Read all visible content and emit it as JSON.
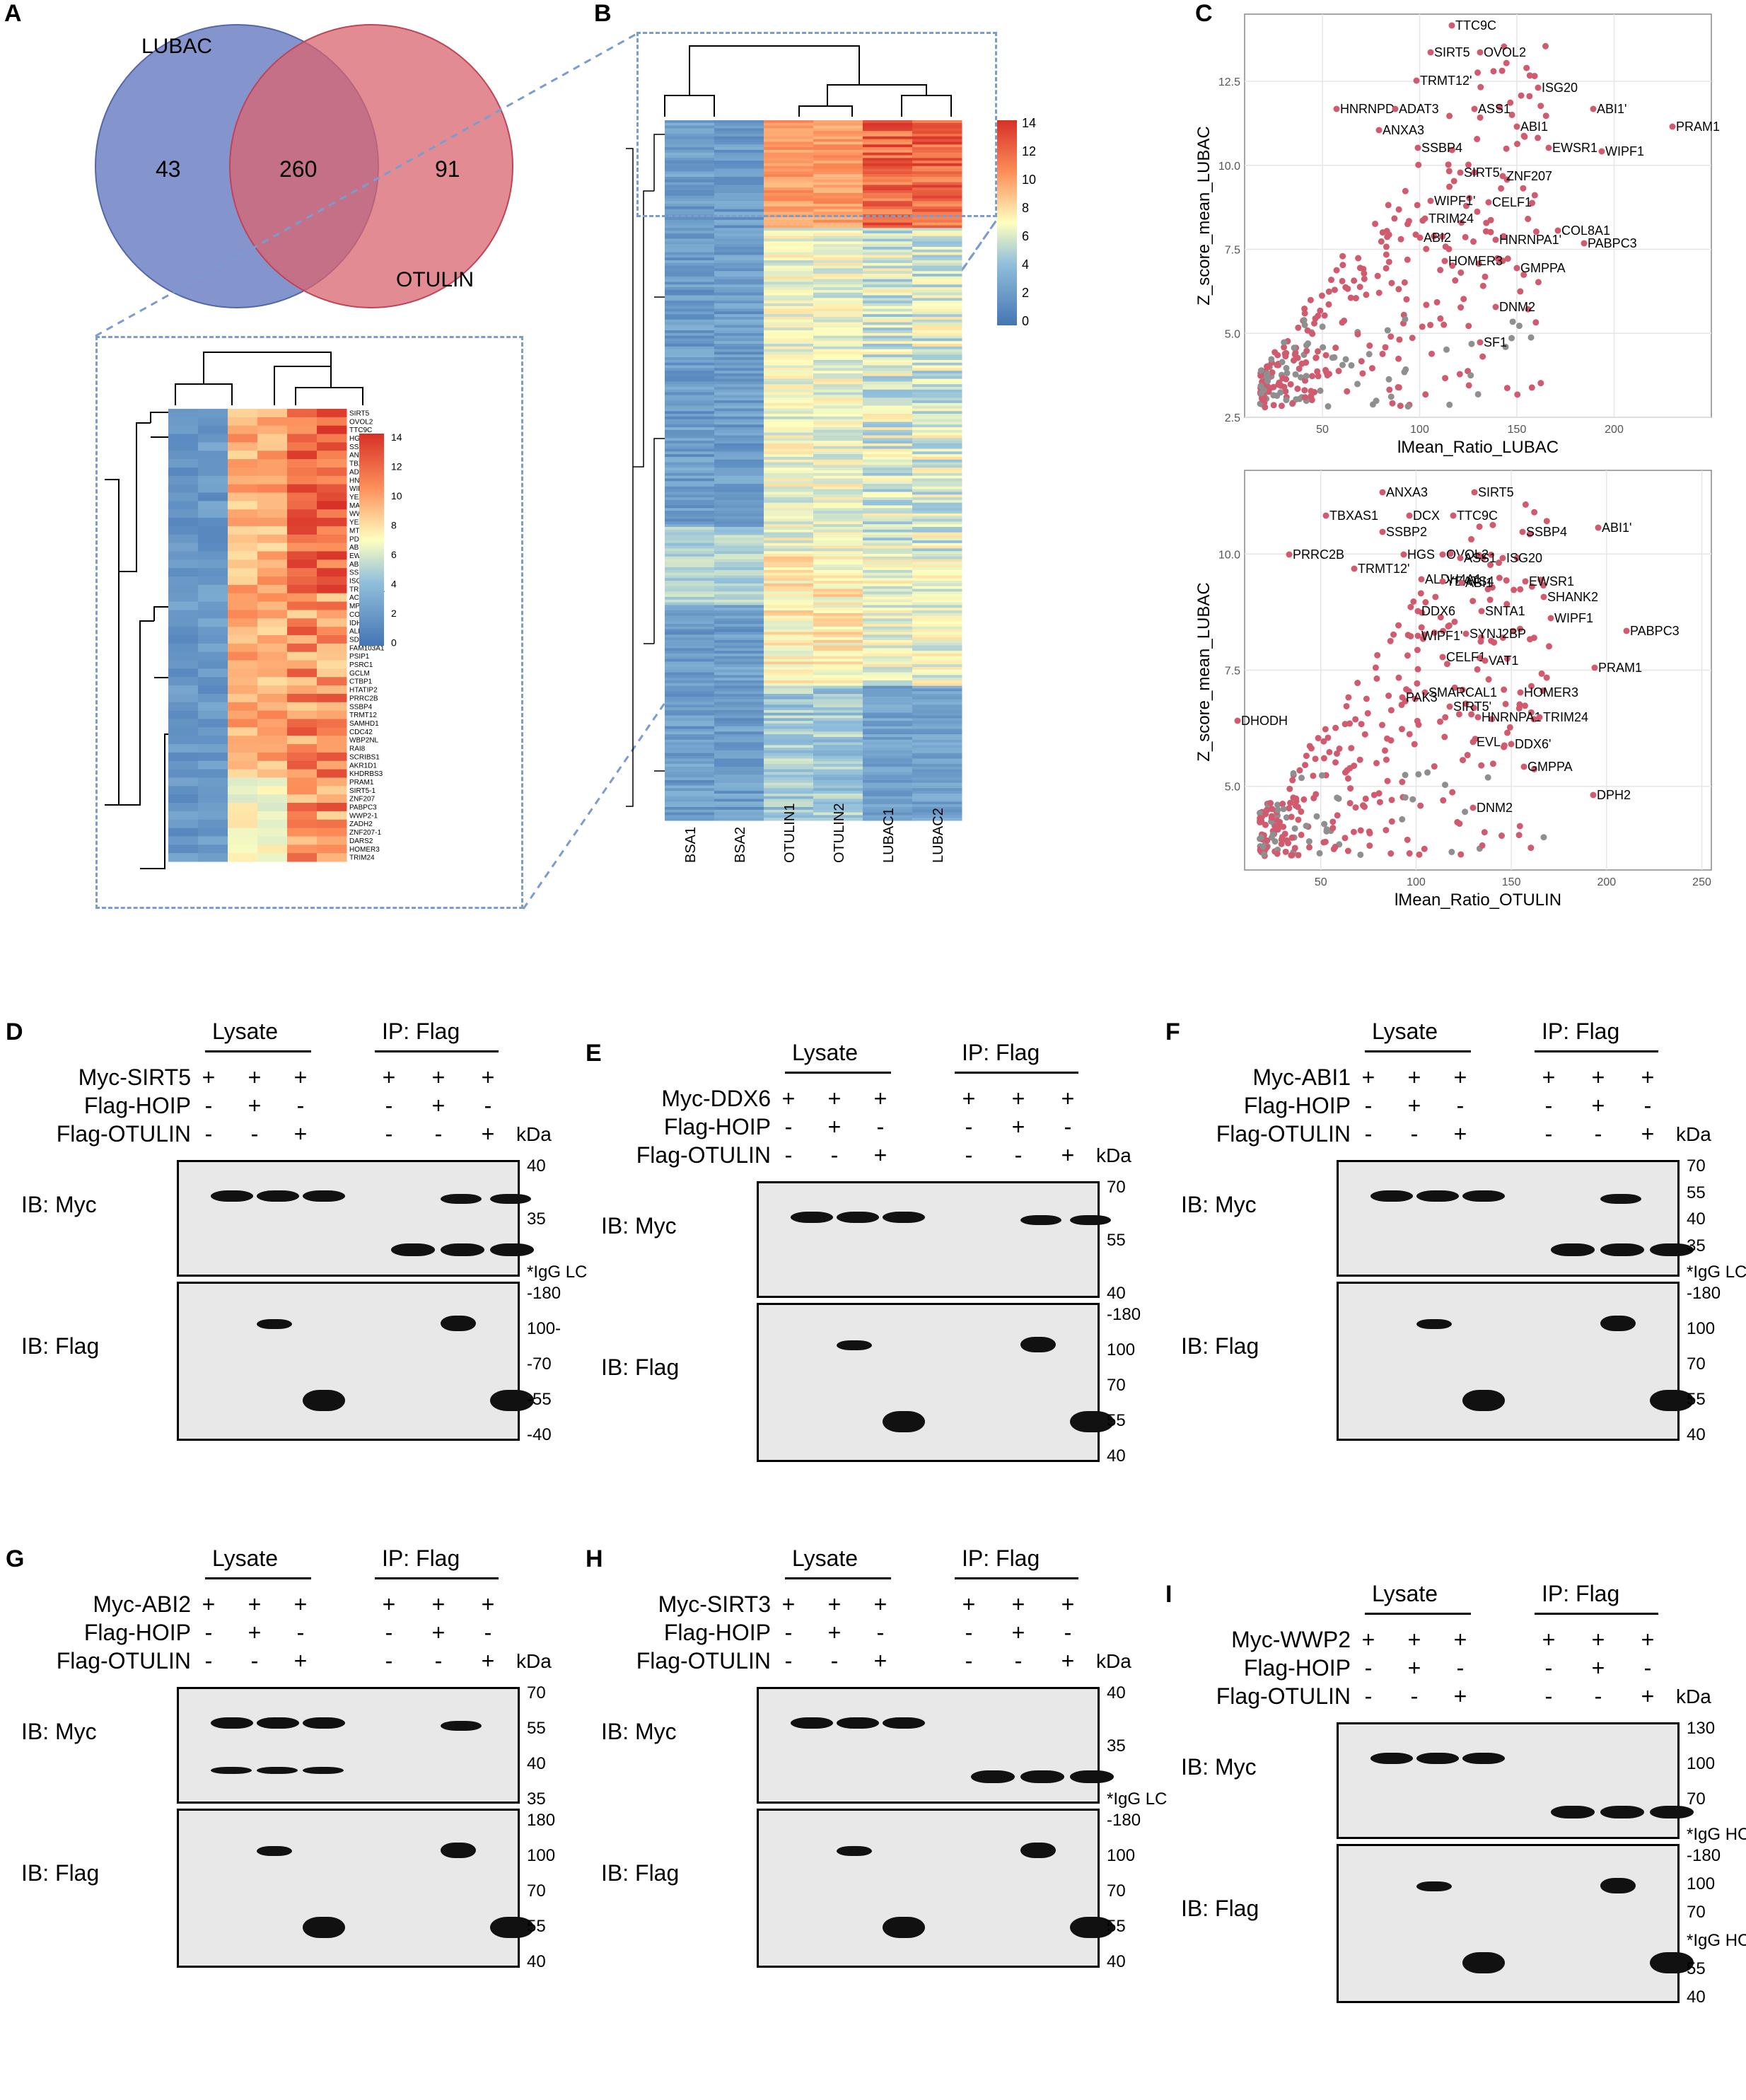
{
  "panels": {
    "A": {
      "letter": "A",
      "venn": {
        "set1": "LUBAC",
        "set2": "OTULIN",
        "only1": "43",
        "both": "260",
        "only2": "91",
        "color1": "#6f83c6",
        "color2": "#d9646f"
      },
      "zoom_heatmap": {
        "legend_ticks": [
          "14",
          "12",
          "10",
          "8",
          "6",
          "4",
          "2",
          "0"
        ],
        "genes": [
          "SIRT5",
          "OVOL2",
          "TTC9C",
          "HGS",
          "SSBP2",
          "ANXA3",
          "TBXAS1",
          "ADAT3",
          "HNRNPD",
          "WIPF1",
          "YEATS4",
          "MAPK1",
          "WWP2",
          "YEATS4-1",
          "MTHFD1",
          "PDCD6",
          "ABI1",
          "EWSR1",
          "ABI1-1",
          "SSBP4",
          "ISG20",
          "TRMT 12-1",
          "ACO1",
          "MPST",
          "COL8A2",
          "IDH1-1",
          "ALDH4A1",
          "SDS",
          "FAM103A1",
          "PSIP1",
          "PSRC1",
          "GCLM",
          "CTBP1",
          "HTATIP2",
          "PRRC2B",
          "SSBP4",
          "TRMT12",
          "SAMHD1",
          "CDC42",
          "WBP2NL",
          "RAI8",
          "SCRIBS1",
          "AKR1D1",
          "KHDRBS3",
          "PRAM1",
          "SIRT5-1",
          "ZNF207",
          "PABPC3",
          "WWP2-1",
          "ZADH2",
          "ZNF207-1",
          "DARS2",
          "HOMER3",
          "TRIM24"
        ]
      }
    },
    "B": {
      "letter": "B",
      "samples": [
        "BSA1",
        "BSA2",
        "OTULIN1",
        "OTULIN2",
        "LUBAC1",
        "LUBAC2"
      ],
      "legend_ticks": [
        "14",
        "12",
        "10",
        "8",
        "6",
        "4",
        "2",
        "0"
      ]
    },
    "C": {
      "letter": "C",
      "top": {
        "xlabel": "lMean_Ratio_LUBAC",
        "ylabel": "Z_score_mean_LUBAC",
        "xticks": [
          "50",
          "100",
          "150",
          "200"
        ],
        "yticks": [
          "2.5",
          "5.0",
          "7.5",
          "10.0",
          "12.5"
        ],
        "labels": [
          "TTC9C",
          "SIRT5",
          "OVOL2",
          "TRMT12'",
          "ISG20",
          "HNRNPD",
          "ADAT3",
          "ASS1",
          "ABI1'",
          "ANXA3",
          "ABI1",
          "PRAM1",
          "SSBP4",
          "EWSR1",
          "WIPF1",
          "SIRT5'",
          "ZNF207",
          "WIPF1'",
          "CELF1",
          "TRIM24",
          "COL8A1",
          "ABI2",
          "HNRNPA1'",
          "PABPC3",
          "HOMER3",
          "GMPPA",
          "DNM2",
          "SF1"
        ]
      },
      "bottom": {
        "xlabel": "lMean_Ratio_OTULIN",
        "ylabel": "Z_score_mean_LUBAC",
        "xticks": [
          "50",
          "100",
          "150",
          "200",
          "250"
        ],
        "yticks": [
          "5.0",
          "7.5",
          "10.0"
        ],
        "labels": [
          "ANXA3",
          "SIRT5",
          "TBXAS1",
          "DCX",
          "TTC9C",
          "SSBP2",
          "SSBP4",
          "ABI1'",
          "PRRC2B",
          "HGS",
          "OVOL2",
          "ASS1",
          "ISG20",
          "TRMT12'",
          "ALDH4A1",
          "YEATS4",
          "ABI1",
          "EWSR1",
          "SHANK2",
          "DDX6",
          "SNTA1",
          "WIPF1",
          "PABPC3",
          "WIPF1'",
          "SYNJ2BP",
          "CELF1",
          "VAT1",
          "PRAM1",
          "SMARCAL1",
          "HOMER3",
          "PAK3",
          "SIRT5'",
          "HNRNPA1",
          "TRIM24",
          "DHODH",
          "EVL",
          "DDX6'",
          "GMPPA",
          "DNM2",
          "DPH2"
        ]
      }
    }
  },
  "blots": [
    {
      "letter": "D",
      "myc": "Myc-SIRT5",
      "lysate": "Lysate",
      "ip": "IP: Flag",
      "hoip": "Flag-HOIP",
      "otulin": "Flag-OTULIN",
      "kda": "kDa",
      "ib1": "IB: Myc",
      "ib2": "IB: Flag",
      "mk1": [
        "40",
        "35",
        "*IgG LC"
      ],
      "mk2": [
        "-180",
        "100-",
        "-70",
        "-55",
        "-40"
      ],
      "signs": {
        "myc": [
          "+",
          "+",
          "+",
          "+",
          "+",
          "+"
        ],
        "hoip": [
          "-",
          "+",
          "-",
          "-",
          "+",
          "-"
        ],
        "otulin": [
          "-",
          "-",
          "+",
          "-",
          "-",
          "+"
        ]
      }
    },
    {
      "letter": "E",
      "myc": "Myc-DDX6",
      "lysate": "Lysate",
      "ip": "IP: Flag",
      "hoip": "Flag-HOIP",
      "otulin": "Flag-OTULIN",
      "kda": "kDa",
      "ib1": "IB: Myc",
      "ib2": "IB: Flag",
      "mk1": [
        "70",
        "55",
        "40"
      ],
      "mk2": [
        "-180",
        "100",
        "70",
        "55",
        "40"
      ],
      "signs": {
        "myc": [
          "+",
          "+",
          "+",
          "+",
          "+",
          "+"
        ],
        "hoip": [
          "-",
          "+",
          "-",
          "-",
          "+",
          "-"
        ],
        "otulin": [
          "-",
          "-",
          "+",
          "-",
          "-",
          "+"
        ]
      }
    },
    {
      "letter": "F",
      "myc": "Myc-ABI1",
      "lysate": "Lysate",
      "ip": "IP: Flag",
      "hoip": "Flag-HOIP",
      "otulin": "Flag-OTULIN",
      "kda": "kDa",
      "ib1": "IB: Myc",
      "ib2": "IB: Flag",
      "mk1": [
        "70",
        "55",
        "40",
        "35",
        "*IgG LC"
      ],
      "mk2": [
        "-180",
        "100",
        "70",
        "55",
        "40"
      ],
      "signs": {
        "myc": [
          "+",
          "+",
          "+",
          "+",
          "+",
          "+"
        ],
        "hoip": [
          "-",
          "+",
          "-",
          "-",
          "+",
          "-"
        ],
        "otulin": [
          "-",
          "-",
          "+",
          "-",
          "-",
          "+"
        ]
      }
    },
    {
      "letter": "G",
      "myc": "Myc-ABI2",
      "lysate": "Lysate",
      "ip": "IP: Flag",
      "hoip": "Flag-HOIP",
      "otulin": "Flag-OTULIN",
      "kda": "kDa",
      "ib1": "IB: Myc",
      "ib2": "IB: Flag",
      "mk1": [
        "70",
        "55",
        "40",
        "35"
      ],
      "mk2": [
        "180",
        "100",
        "70",
        "55",
        "40"
      ],
      "signs": {
        "myc": [
          "+",
          "+",
          "+",
          "+",
          "+",
          "+"
        ],
        "hoip": [
          "-",
          "+",
          "-",
          "-",
          "+",
          "-"
        ],
        "otulin": [
          "-",
          "-",
          "+",
          "-",
          "-",
          "+"
        ]
      }
    },
    {
      "letter": "H",
      "myc": "Myc-SIRT3",
      "lysate": "Lysate",
      "ip": "IP: Flag",
      "hoip": "Flag-HOIP",
      "otulin": "Flag-OTULIN",
      "kda": "kDa",
      "ib1": "IB: Myc",
      "ib2": "IB: Flag",
      "mk1": [
        "40",
        "35",
        "*IgG LC"
      ],
      "mk2": [
        "-180",
        "100",
        "70",
        "55",
        "40"
      ],
      "signs": {
        "myc": [
          "+",
          "+",
          "+",
          "+",
          "+",
          "+"
        ],
        "hoip": [
          "-",
          "+",
          "-",
          "-",
          "+",
          "-"
        ],
        "otulin": [
          "-",
          "-",
          "+",
          "-",
          "-",
          "+"
        ]
      }
    },
    {
      "letter": "I",
      "myc": "Myc-WWP2",
      "lysate": "Lysate",
      "ip": "IP: Flag",
      "hoip": "Flag-HOIP",
      "otulin": "Flag-OTULIN",
      "kda": "kDa",
      "ib1": "IB: Myc",
      "ib2": "IB: Flag",
      "mk1": [
        "130",
        "100",
        "70",
        "*IgG HC"
      ],
      "mk2": [
        "-180",
        "100",
        "70",
        "*IgG HC",
        "55",
        "40"
      ],
      "signs": {
        "myc": [
          "+",
          "+",
          "+",
          "+",
          "+",
          "+"
        ],
        "hoip": [
          "-",
          "+",
          "-",
          "-",
          "+",
          "-"
        ],
        "otulin": [
          "-",
          "-",
          "+",
          "-",
          "-",
          "+"
        ]
      }
    }
  ]
}
